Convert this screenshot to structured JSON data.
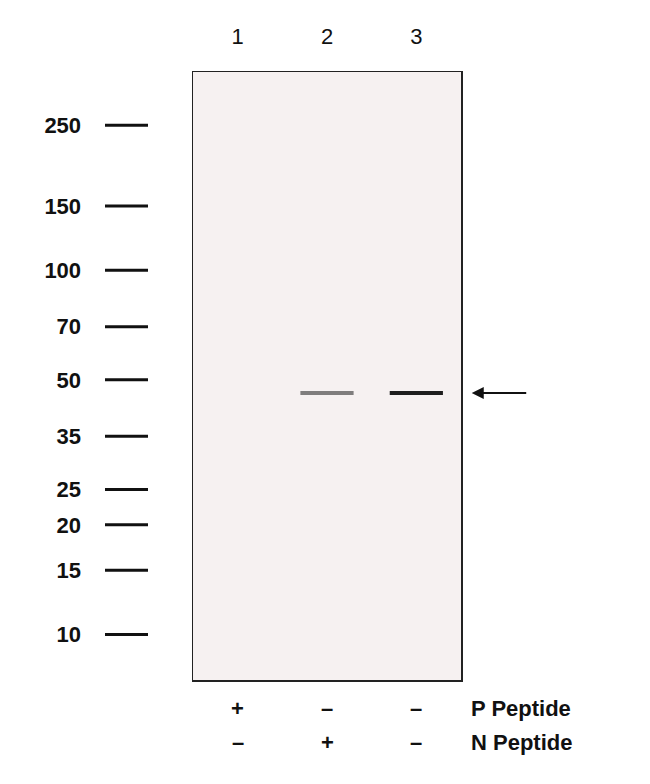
{
  "chart_data": {
    "type": "western_blot",
    "categories": [
      "1",
      "2",
      "3"
    ],
    "values": [
      null,
      46,
      46
    ],
    "intensity": [
      0,
      0.55,
      1
    ],
    "color": "#1e1e1e",
    "ylim": [
      7.5,
      350
    ],
    "yticks": [
      250,
      150,
      100,
      70,
      50,
      35,
      25,
      20,
      15,
      10
    ],
    "log": "y",
    "treatments": [
      {
        "name": "P Peptide",
        "values": [
          "+",
          "–",
          "–"
        ]
      },
      {
        "name": "N Peptide",
        "values": [
          "–",
          "+",
          "–"
        ]
      }
    ]
  }
}
